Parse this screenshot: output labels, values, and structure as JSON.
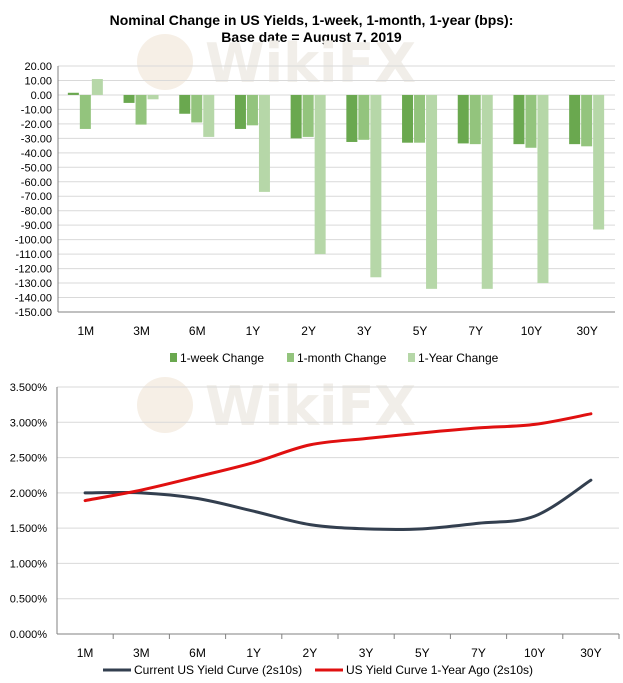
{
  "chart_data": [
    {
      "type": "bar",
      "title": [
        "Nominal Change in US Yields, 1-week, 1-month, 1-year (bps):",
        "Base date = August 7, 2019"
      ],
      "categories": [
        "1M",
        "3M",
        "6M",
        "1Y",
        "2Y",
        "3Y",
        "5Y",
        "7Y",
        "10Y",
        "30Y"
      ],
      "series": [
        {
          "name": "1-week Change",
          "color": "#6aa84f",
          "values": [
            1.5,
            -5.5,
            -13,
            -23.5,
            -30,
            -32.5,
            -33,
            -33.5,
            -34,
            -34
          ]
        },
        {
          "name": "1-month Change",
          "color": "#93c47d",
          "values": [
            -23.5,
            -20.5,
            -19,
            -21,
            -29,
            -31,
            -33,
            -34,
            -36.5,
            -35.5
          ]
        },
        {
          "name": "1-Year Change",
          "color": "#b6d7a8",
          "values": [
            11,
            -3,
            -29,
            -67,
            -110,
            -126,
            -134,
            -134,
            -130,
            -93
          ]
        }
      ],
      "ylim": [
        -150,
        20
      ],
      "yticks": [
        "20.00",
        "10.00",
        "0.00",
        "-10.00",
        "-20.00",
        "-30.00",
        "-40.00",
        "-50.00",
        "-60.00",
        "-70.00",
        "-80.00",
        "-90.00",
        "-100.00",
        "-110.00",
        "-120.00",
        "-130.00",
        "-140.00",
        "-150.00"
      ],
      "legend": "bottom"
    },
    {
      "type": "line",
      "categories": [
        "1M",
        "3M",
        "6M",
        "1Y",
        "2Y",
        "3Y",
        "5Y",
        "7Y",
        "10Y",
        "30Y"
      ],
      "series": [
        {
          "name": "Current US Yield Curve (2s10s)",
          "color": "#333f4f",
          "values": [
            2.0,
            2.0,
            1.92,
            1.74,
            1.55,
            1.49,
            1.49,
            1.57,
            1.67,
            2.18
          ]
        },
        {
          "name": "US Yield Curve 1-Year Ago (2s10s)",
          "color": "#e01010",
          "values": [
            1.89,
            2.04,
            2.23,
            2.43,
            2.68,
            2.77,
            2.85,
            2.92,
            2.97,
            3.12
          ]
        }
      ],
      "ylim": [
        0,
        3.5
      ],
      "yticks": [
        "3.500%",
        "3.000%",
        "2.500%",
        "2.000%",
        "1.500%",
        "1.000%",
        "0.500%",
        "0.000%"
      ],
      "legend": "bottom"
    }
  ],
  "watermark": "WikiFX"
}
